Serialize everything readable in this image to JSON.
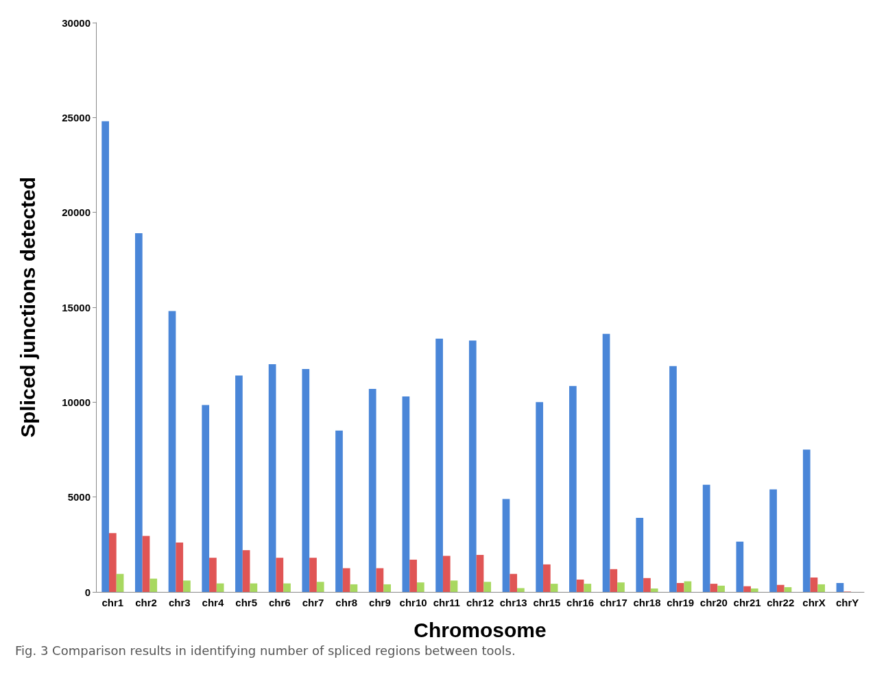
{
  "chart_data": {
    "type": "bar",
    "xlabel": "Chromosome",
    "ylabel": "Spliced junctions detected",
    "categories": [
      "chr1",
      "chr2",
      "chr3",
      "chr4",
      "chr5",
      "chr6",
      "chr7",
      "chr8",
      "chr9",
      "chr10",
      "chr11",
      "chr12",
      "chr13",
      "chr15",
      "chr16",
      "chr17",
      "chr18",
      "chr19",
      "chr20",
      "chr21",
      "chr22",
      "chrX",
      "chrY"
    ],
    "series": [
      {
        "color": "#4a86d8",
        "values": [
          24800,
          18900,
          14800,
          9850,
          11400,
          12000,
          11750,
          8500,
          10700,
          10300,
          13350,
          13250,
          4900,
          10000,
          10850,
          13600,
          3900,
          11900,
          5650,
          2650,
          5400,
          7500,
          470
        ]
      },
      {
        "color": "#e05555",
        "values": [
          3100,
          2950,
          2600,
          1800,
          2200,
          1800,
          1800,
          1250,
          1250,
          1700,
          1900,
          1950,
          950,
          1450,
          650,
          1200,
          730,
          470,
          430,
          300,
          370,
          760,
          20
        ]
      },
      {
        "color": "#a8d860",
        "values": [
          950,
          700,
          600,
          450,
          450,
          450,
          530,
          400,
          400,
          500,
          600,
          530,
          200,
          430,
          430,
          500,
          180,
          560,
          330,
          180,
          250,
          400,
          null
        ]
      }
    ],
    "ylim": [
      0,
      30000
    ],
    "yticks": [
      0,
      5000,
      10000,
      15000,
      20000,
      25000,
      30000
    ],
    "grid": false,
    "annotations": [
      "Fig. 3 Comparison results in identifying number of spliced regions between tools."
    ]
  }
}
